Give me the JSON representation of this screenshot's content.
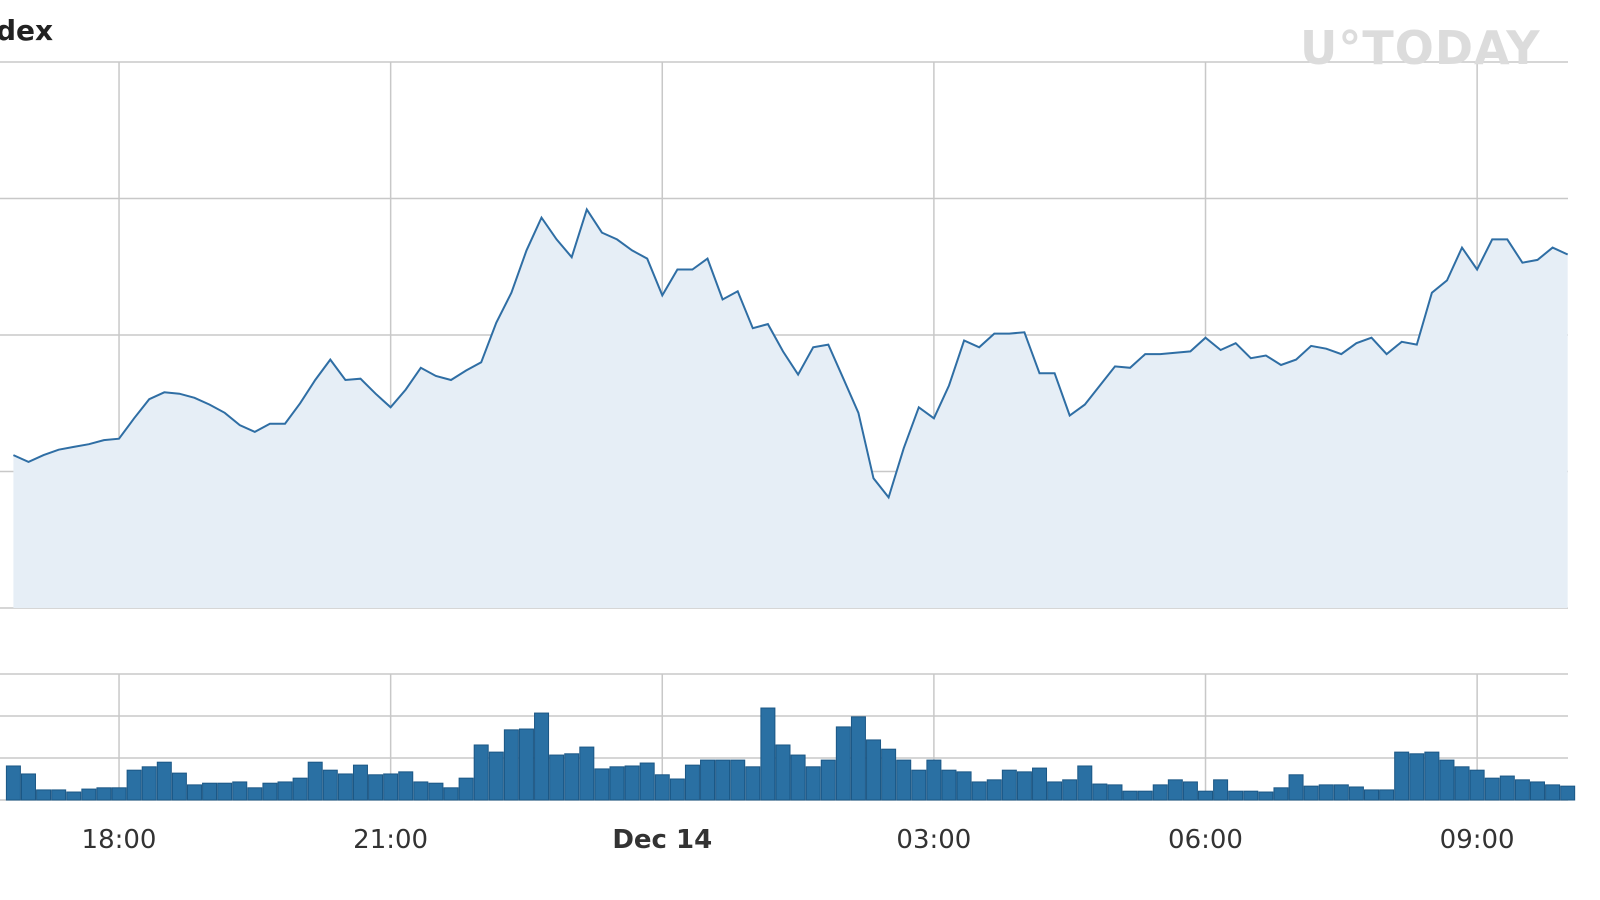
{
  "chart_data": [
    {
      "type": "area",
      "title": "dex",
      "watermark": "U°TODAY",
      "categories": [
        null,
        null,
        null,
        null,
        null,
        null,
        null,
        "18:00",
        null,
        null,
        null,
        null,
        null,
        null,
        null,
        null,
        null,
        null,
        null,
        null,
        null,
        null,
        null,
        null,
        null,
        "21:00",
        null,
        null,
        null,
        null,
        null,
        null,
        null,
        null,
        null,
        null,
        null,
        null,
        null,
        null,
        null,
        null,
        null,
        "Dec 14",
        null,
        null,
        null,
        null,
        null,
        null,
        null,
        null,
        null,
        null,
        null,
        null,
        null,
        null,
        null,
        null,
        null,
        "03:00",
        null,
        null,
        null,
        null,
        null,
        null,
        null,
        null,
        null,
        null,
        null,
        null,
        null,
        null,
        null,
        null,
        null,
        "06:00",
        null,
        null,
        null,
        null,
        null,
        null,
        null,
        null,
        null,
        null,
        null,
        null,
        null,
        null,
        null,
        null,
        null,
        "09:00",
        null,
        null,
        null,
        null,
        null,
        null
      ],
      "values": [
        112,
        107,
        112,
        116,
        118,
        120,
        123,
        124,
        139,
        153,
        158,
        157,
        154,
        149,
        143,
        134,
        129,
        135,
        135,
        150,
        167,
        182,
        167,
        168,
        157,
        147,
        160,
        176,
        170,
        167,
        174,
        180,
        209,
        231,
        262,
        286,
        270,
        257,
        292,
        275,
        270,
        262,
        256,
        229,
        248,
        248,
        256,
        226,
        232,
        205,
        208,
        188,
        171,
        191,
        193,
        168,
        143,
        95,
        81,
        117,
        147,
        139,
        163,
        196,
        191,
        201,
        201,
        202,
        172,
        172,
        141,
        149,
        163,
        177,
        176,
        186,
        186,
        187,
        188,
        198,
        189,
        194,
        183,
        185,
        178,
        182,
        192,
        190,
        186,
        194,
        198,
        186,
        195,
        193,
        231,
        240,
        264,
        248,
        270,
        270,
        253,
        255,
        264,
        259
      ],
      "color": "#2f6ea4",
      "fill": "#e6eef6",
      "ylim": [
        0,
        400
      ],
      "ygrid": [
        0,
        100,
        200,
        300,
        400
      ],
      "grid": true
    },
    {
      "type": "bar",
      "values": [
        81,
        62,
        24,
        24,
        19,
        26,
        29,
        29,
        71,
        79,
        90,
        64,
        36,
        40,
        40,
        43,
        29,
        40,
        43,
        52,
        90,
        71,
        62,
        83,
        60,
        62,
        67,
        43,
        40,
        29,
        52,
        131,
        114,
        167,
        169,
        207,
        107,
        110,
        126,
        74,
        79,
        81,
        88,
        60,
        50,
        83,
        95,
        95,
        95,
        79,
        219,
        131,
        107,
        79,
        95,
        174,
        198,
        143,
        121,
        95,
        71,
        95,
        71,
        67,
        43,
        48,
        71,
        67,
        76,
        43,
        48,
        81,
        38,
        36,
        21,
        21,
        36,
        48,
        43,
        21,
        48,
        21,
        21,
        19,
        29,
        60,
        33,
        36,
        36,
        31,
        24,
        24,
        114,
        110,
        114,
        95,
        79,
        71,
        52,
        57,
        48,
        43,
        36,
        33
      ],
      "color": "#2a70a3",
      "ylim": [
        0,
        300
      ],
      "ygrid": [
        0,
        100,
        200,
        300
      ],
      "grid": true
    }
  ]
}
